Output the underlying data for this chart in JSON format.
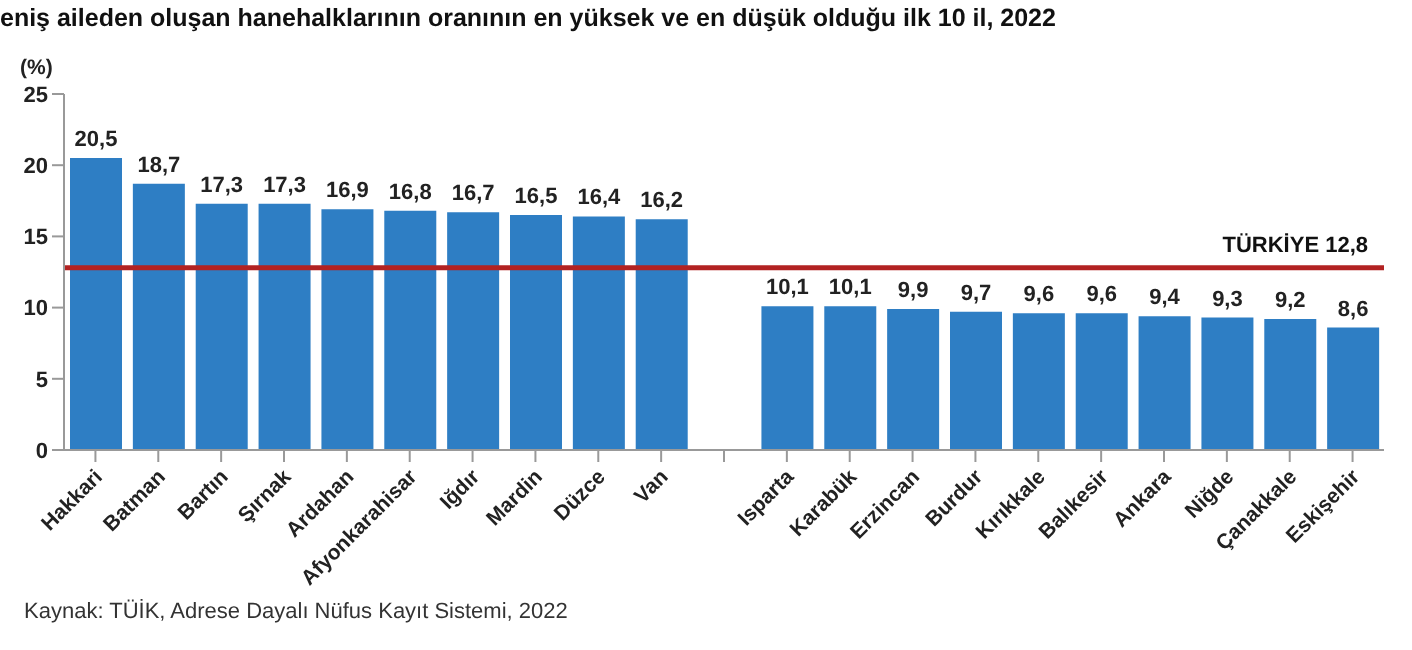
{
  "chart_data": {
    "type": "bar",
    "title": "eniş aileden oluşan hanehalklarının oranının en yüksek ve en düşük olduğu ilk 10 il, 2022",
    "ylabel": "(%)",
    "categories": [
      "Hakkari",
      "Batman",
      "Bartın",
      "Şırnak",
      "Ardahan",
      "Afyonkarahisar",
      "Iğdır",
      "Mardin",
      "Düzce",
      "Van",
      null,
      "Isparta",
      "Karabük",
      "Erzincan",
      "Burdur",
      "Kırıkkale",
      "Balıkesir",
      "Ankara",
      "Niğde",
      "Çanakkale",
      "Eskişehir"
    ],
    "values": [
      20.5,
      18.7,
      17.3,
      17.3,
      16.9,
      16.8,
      16.7,
      16.5,
      16.4,
      16.2,
      null,
      10.1,
      10.1,
      9.9,
      9.7,
      9.6,
      9.6,
      9.4,
      9.3,
      9.2,
      8.6
    ],
    "value_labels": [
      "20,5",
      "18,7",
      "17,3",
      "17,3",
      "16,9",
      "16,8",
      "16,7",
      "16,5",
      "16,4",
      "16,2",
      null,
      "10,1",
      "10,1",
      "9,9",
      "9,7",
      "9,6",
      "9,6",
      "9,4",
      "9,3",
      "9,2",
      "8,6"
    ],
    "color": "#2e7ec4",
    "ylim": [
      0,
      25
    ],
    "yticks": [
      0,
      5,
      10,
      15,
      20,
      25
    ],
    "grid": false,
    "ref_lines": [
      {
        "axis": "y",
        "value": 12.8,
        "label": "TÜRKİYE  12,8",
        "color": "#b22222"
      }
    ],
    "annotations": [
      "Kaynak: TÜİK, Adrese Dayalı Nüfus Kayıt Sistemi, 2022"
    ]
  }
}
